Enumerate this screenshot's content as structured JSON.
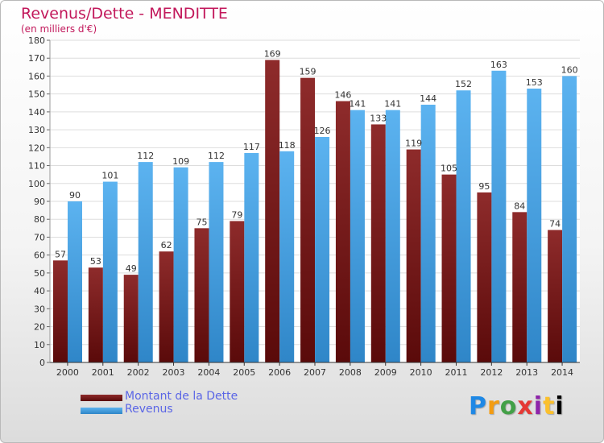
{
  "title": "Revenus/Dette - MENDITTE",
  "subtitle": "(en milliers d'€)",
  "logo": "Proxiti",
  "chart_data": {
    "type": "bar",
    "categories": [
      "2000",
      "2001",
      "2002",
      "2003",
      "2004",
      "2005",
      "2006",
      "2007",
      "2008",
      "2009",
      "2010",
      "2011",
      "2012",
      "2013",
      "2014"
    ],
    "series": [
      {
        "name": "Montant de la Dette",
        "color": "#7a1b1b",
        "values": [
          57,
          53,
          49,
          62,
          75,
          79,
          169,
          159,
          146,
          133,
          119,
          105,
          95,
          84,
          74
        ]
      },
      {
        "name": "Revenus",
        "color": "#4aa3e6",
        "values": [
          90,
          101,
          112,
          109,
          112,
          117,
          118,
          126,
          141,
          141,
          144,
          152,
          163,
          153,
          160
        ]
      }
    ],
    "ylim": [
      0,
      180
    ],
    "yticks": [
      0,
      10,
      20,
      30,
      40,
      50,
      60,
      70,
      80,
      90,
      100,
      110,
      120,
      130,
      140,
      150,
      160,
      170,
      180
    ],
    "grid": true,
    "legend_position": "bottom-left"
  }
}
